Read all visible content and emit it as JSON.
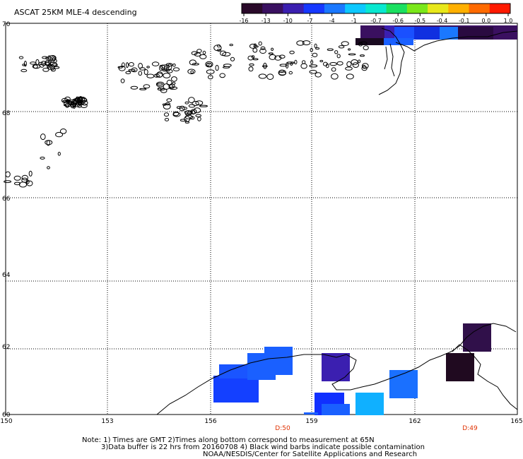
{
  "title": "ASCAT 25KM MLE-4 descending",
  "colorbar": {
    "tick_labels": [
      "-16",
      "-13",
      "-10",
      "-7",
      "-4",
      "-1",
      "-0.7",
      "-0.6",
      "-0.5",
      "-0.4",
      "-0.1",
      "0.0",
      "1.0"
    ],
    "colors": [
      "#2a0a2a",
      "#3a1060",
      "#3b1fb0",
      "#1638ff",
      "#1a78ff",
      "#0cc8ff",
      "#08e8d0",
      "#1ae060",
      "#7ae81a",
      "#e8e81a",
      "#ffb000",
      "#ff6a00",
      "#ff1a00"
    ]
  },
  "map": {
    "lat_labels": [
      "70",
      "68",
      "66",
      "64",
      "62",
      "60"
    ],
    "lon_labels": [
      "150",
      "153",
      "156",
      "159",
      "162",
      "165"
    ],
    "time_labels": [
      "D:50",
      "D:49"
    ],
    "time_label_color": "#e03000",
    "grid_color": "#000000",
    "coast_color": "#000000"
  },
  "notes": {
    "line1": "Note: 1) Times are GMT 2)Times along bottom correspond to measurement at 65N",
    "line2": "3)Data buffer is 22 hrs from 20160708 4) Black wind barbs indicate possible contamination",
    "line3": "NOAA/NESDIS/Center for Satellite Applications and Research"
  }
}
